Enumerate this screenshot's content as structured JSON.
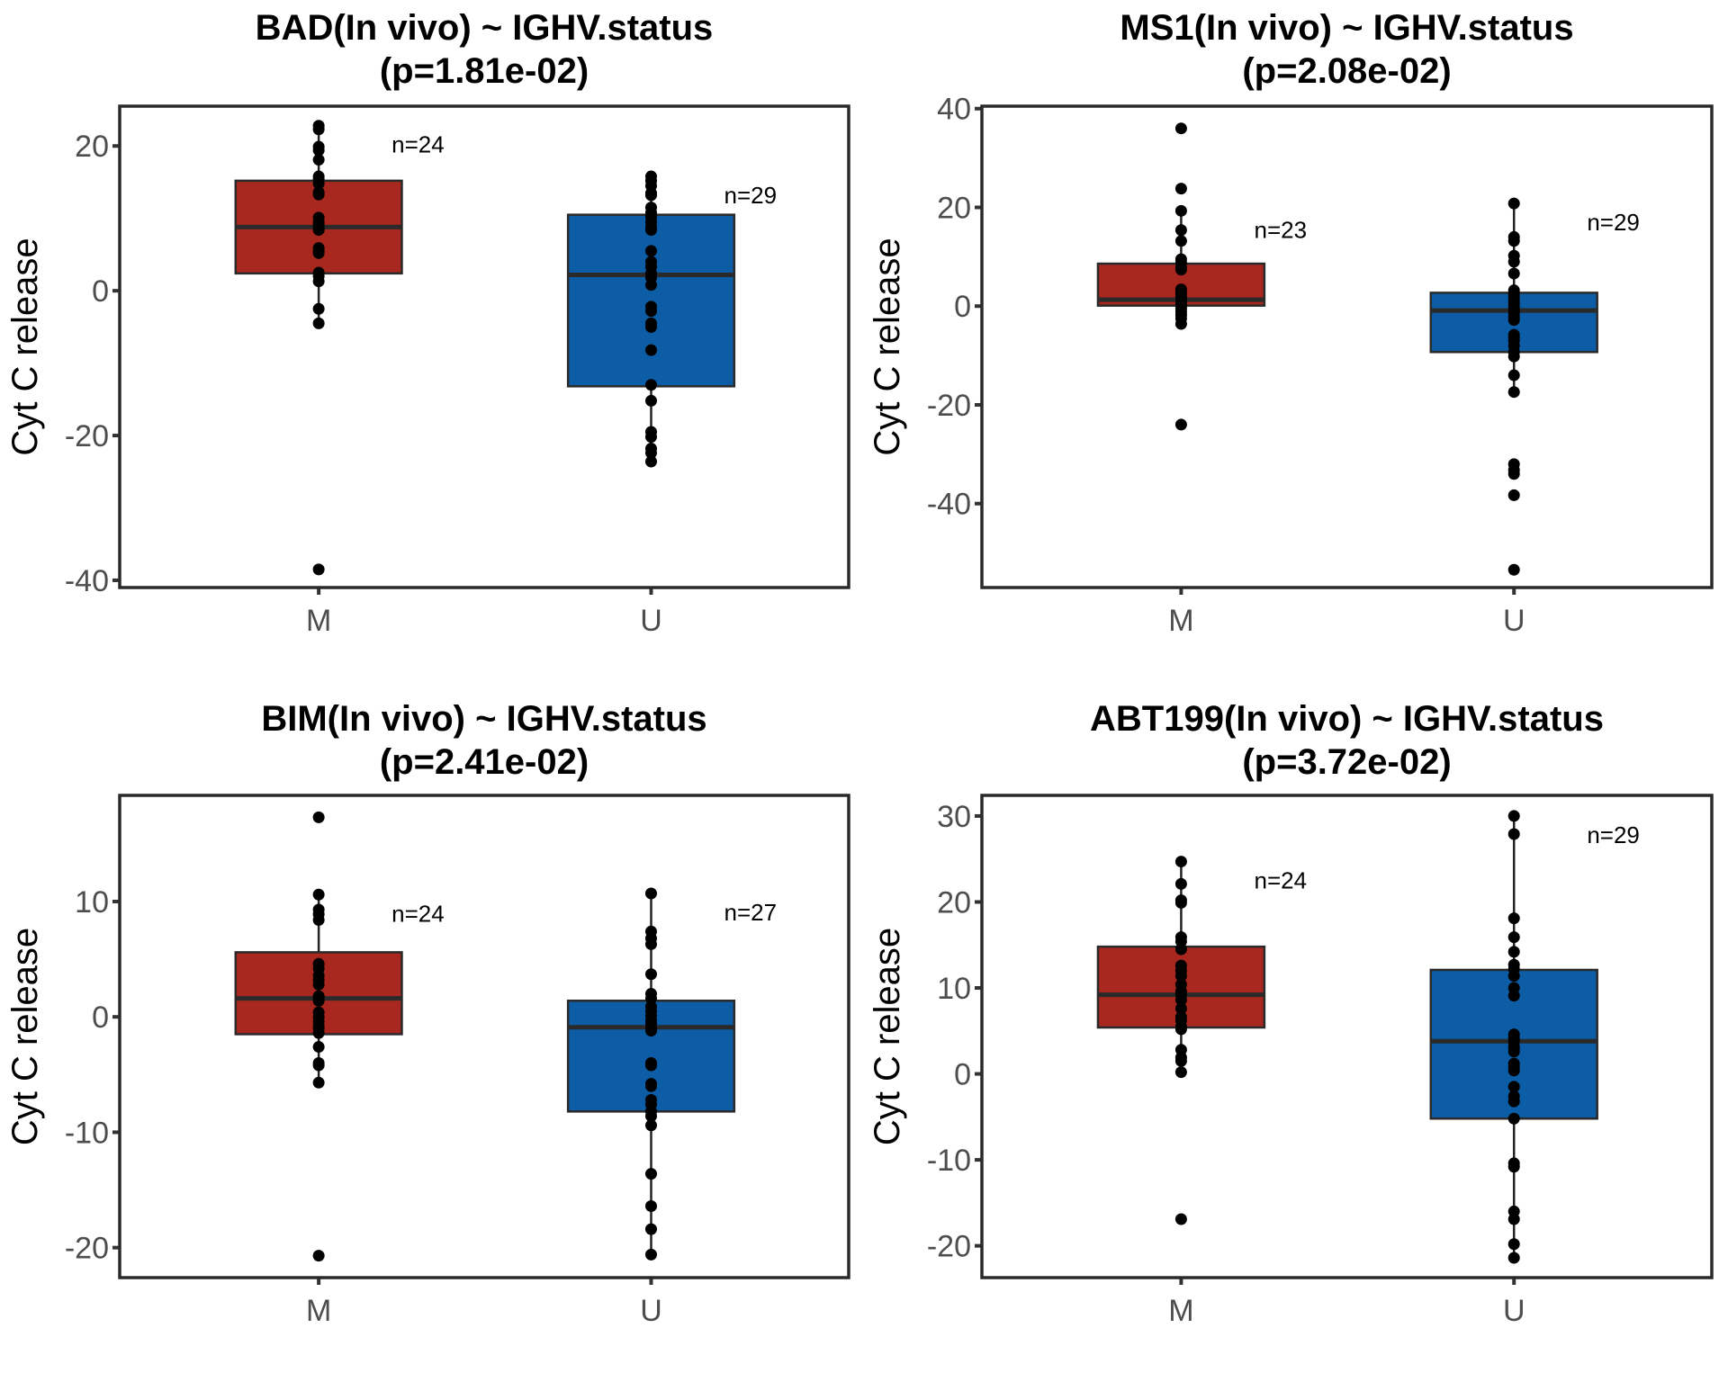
{
  "chart_data": [
    {
      "type": "box",
      "title": "BAD(In vivo) ~ IGHV.status",
      "subtitle": "(p=1.81e-02)",
      "xlabel": "",
      "ylabel": "Cyt C release",
      "categories": [
        "M",
        "U"
      ],
      "yticks": [
        20,
        0,
        -20,
        -40
      ],
      "ylim": [
        -41,
        25.5
      ],
      "grid": false,
      "groups": [
        {
          "name": "M",
          "n_label": "n=24",
          "color": "#A8281F",
          "q1": 2.4,
          "median": 8.8,
          "q3": 15.2,
          "whisker_low": -4.5,
          "whisker_high": 22.8,
          "points": [
            22.8,
            22.3,
            19.9,
            19.4,
            18.1,
            15.8,
            15.4,
            14.8,
            13.6,
            13.3,
            10.1,
            9.5,
            9.2,
            8.8,
            8.4,
            5.9,
            5.5,
            5.2,
            2.5,
            2.0,
            1.3,
            -2.5,
            -4.5,
            -38.5
          ]
        },
        {
          "name": "U",
          "n_label": "n=29",
          "color": "#0C5DA5",
          "q1": -13.2,
          "median": 2.2,
          "q3": 10.5,
          "whisker_low": -23.6,
          "whisker_high": 15.8,
          "points": [
            15.8,
            15.2,
            14.5,
            13.5,
            13.2,
            11.5,
            10.8,
            10.2,
            9.5,
            8.8,
            8.4,
            5.5,
            4.0,
            3.3,
            2.4,
            1.8,
            0.8,
            -2.2,
            -2.8,
            -4.5,
            -5.0,
            -8.2,
            -13.0,
            -15.2,
            -19.5,
            -20.2,
            -21.8,
            -22.4,
            -23.6
          ]
        }
      ]
    },
    {
      "type": "box",
      "title": "MS1(In vivo) ~ IGHV.status",
      "subtitle": "(p=2.08e-02)",
      "xlabel": "",
      "ylabel": "Cyt C release",
      "categories": [
        "M",
        "U"
      ],
      "yticks": [
        40,
        20,
        0,
        -20,
        -40
      ],
      "ylim": [
        -57,
        40.5
      ],
      "grid": false,
      "groups": [
        {
          "name": "M",
          "n_label": "n=23",
          "color": "#A8281F",
          "q1": 0.1,
          "median": 1.3,
          "q3": 8.6,
          "whisker_low": -3.6,
          "whisker_high": 19.3,
          "points": [
            36.0,
            23.8,
            19.3,
            15.4,
            13.2,
            9.5,
            8.8,
            7.8,
            7.4,
            3.4,
            2.8,
            2.2,
            1.8,
            1.3,
            0.8,
            0.4,
            0.0,
            -0.5,
            -1.2,
            -1.8,
            -2.5,
            -3.6,
            -24.0
          ]
        },
        {
          "name": "U",
          "n_label": "n=29",
          "color": "#0C5DA5",
          "q1": -9.3,
          "median": -0.9,
          "q3": 2.7,
          "whisker_low": -17.4,
          "whisker_high": 20.8,
          "points": [
            20.8,
            14.0,
            13.2,
            10.2,
            9.0,
            6.6,
            3.2,
            2.5,
            1.8,
            1.2,
            0.5,
            -0.2,
            -0.9,
            -1.5,
            -2.2,
            -2.8,
            -5.8,
            -6.4,
            -7.0,
            -9.3,
            -10.2,
            -14.0,
            -17.4,
            -32.0,
            -33.2,
            -34.0,
            -38.3,
            -53.4,
            -8.0
          ]
        }
      ]
    },
    {
      "type": "box",
      "title": "BIM(In vivo) ~ IGHV.status",
      "subtitle": "(p=2.41e-02)",
      "xlabel": "",
      "ylabel": "Cyt C release",
      "categories": [
        "M",
        "U"
      ],
      "yticks": [
        10,
        0,
        -10,
        -20
      ],
      "ylim": [
        -22.6,
        19.2
      ],
      "grid": false,
      "groups": [
        {
          "name": "M",
          "n_label": "n=24",
          "color": "#A8281F",
          "q1": -1.5,
          "median": 1.6,
          "q3": 5.6,
          "whisker_low": -5.7,
          "whisker_high": 10.6,
          "points": [
            17.3,
            10.6,
            9.3,
            8.9,
            8.4,
            4.6,
            4.2,
            3.6,
            3.2,
            2.8,
            1.8,
            1.6,
            1.4,
            0.4,
            0.0,
            -0.4,
            -0.8,
            -1.0,
            -1.4,
            -2.6,
            -4.0,
            -4.2,
            -5.7,
            -20.7
          ]
        },
        {
          "name": "U",
          "n_label": "n=27",
          "color": "#0C5DA5",
          "q1": -8.2,
          "median": -0.9,
          "q3": 1.4,
          "whisker_low": -20.6,
          "whisker_high": 10.7,
          "points": [
            10.7,
            7.4,
            6.8,
            6.3,
            3.7,
            2.0,
            1.6,
            0.9,
            0.5,
            0.1,
            -0.3,
            -0.6,
            -1.2,
            -4.0,
            -4.2,
            -5.8,
            -6.0,
            -7.2,
            -7.6,
            -8.2,
            -8.6,
            -9.4,
            -13.6,
            -16.4,
            -18.4,
            -20.6,
            -1.0
          ]
        }
      ]
    },
    {
      "type": "box",
      "title": "ABT199(In vivo) ~ IGHV.status",
      "subtitle": "(p=3.72e-02)",
      "xlabel": "",
      "ylabel": "Cyt C release",
      "categories": [
        "M",
        "U"
      ],
      "yticks": [
        30,
        20,
        10,
        0,
        -10,
        -20
      ],
      "ylim": [
        -23.7,
        32.4
      ],
      "grid": false,
      "groups": [
        {
          "name": "M",
          "n_label": "n=24",
          "color": "#A8281F",
          "q1": 5.4,
          "median": 9.2,
          "q3": 14.8,
          "whisker_low": 0.2,
          "whisker_high": 24.7,
          "points": [
            24.7,
            22.1,
            20.2,
            19.9,
            15.9,
            15.4,
            14.5,
            12.6,
            12.0,
            11.4,
            10.4,
            9.6,
            9.2,
            8.6,
            7.6,
            6.6,
            6.2,
            5.5,
            5.2,
            2.8,
            1.9,
            1.5,
            0.2,
            -16.9
          ]
        },
        {
          "name": "U",
          "n_label": "n=29",
          "color": "#0C5DA5",
          "q1": -5.2,
          "median": 3.8,
          "q3": 12.1,
          "whisker_low": -21.4,
          "whisker_high": 30.0,
          "points": [
            30.0,
            27.9,
            18.1,
            15.9,
            14.2,
            12.7,
            12.2,
            11.4,
            10.0,
            9.1,
            4.6,
            4.2,
            3.8,
            3.2,
            3.0,
            1.2,
            0.8,
            0.4,
            -1.5,
            -2.6,
            -3.2,
            -5.2,
            -10.4,
            -10.8,
            -16.0,
            -16.9,
            -19.8,
            -21.4,
            2.6
          ]
        }
      ]
    }
  ]
}
